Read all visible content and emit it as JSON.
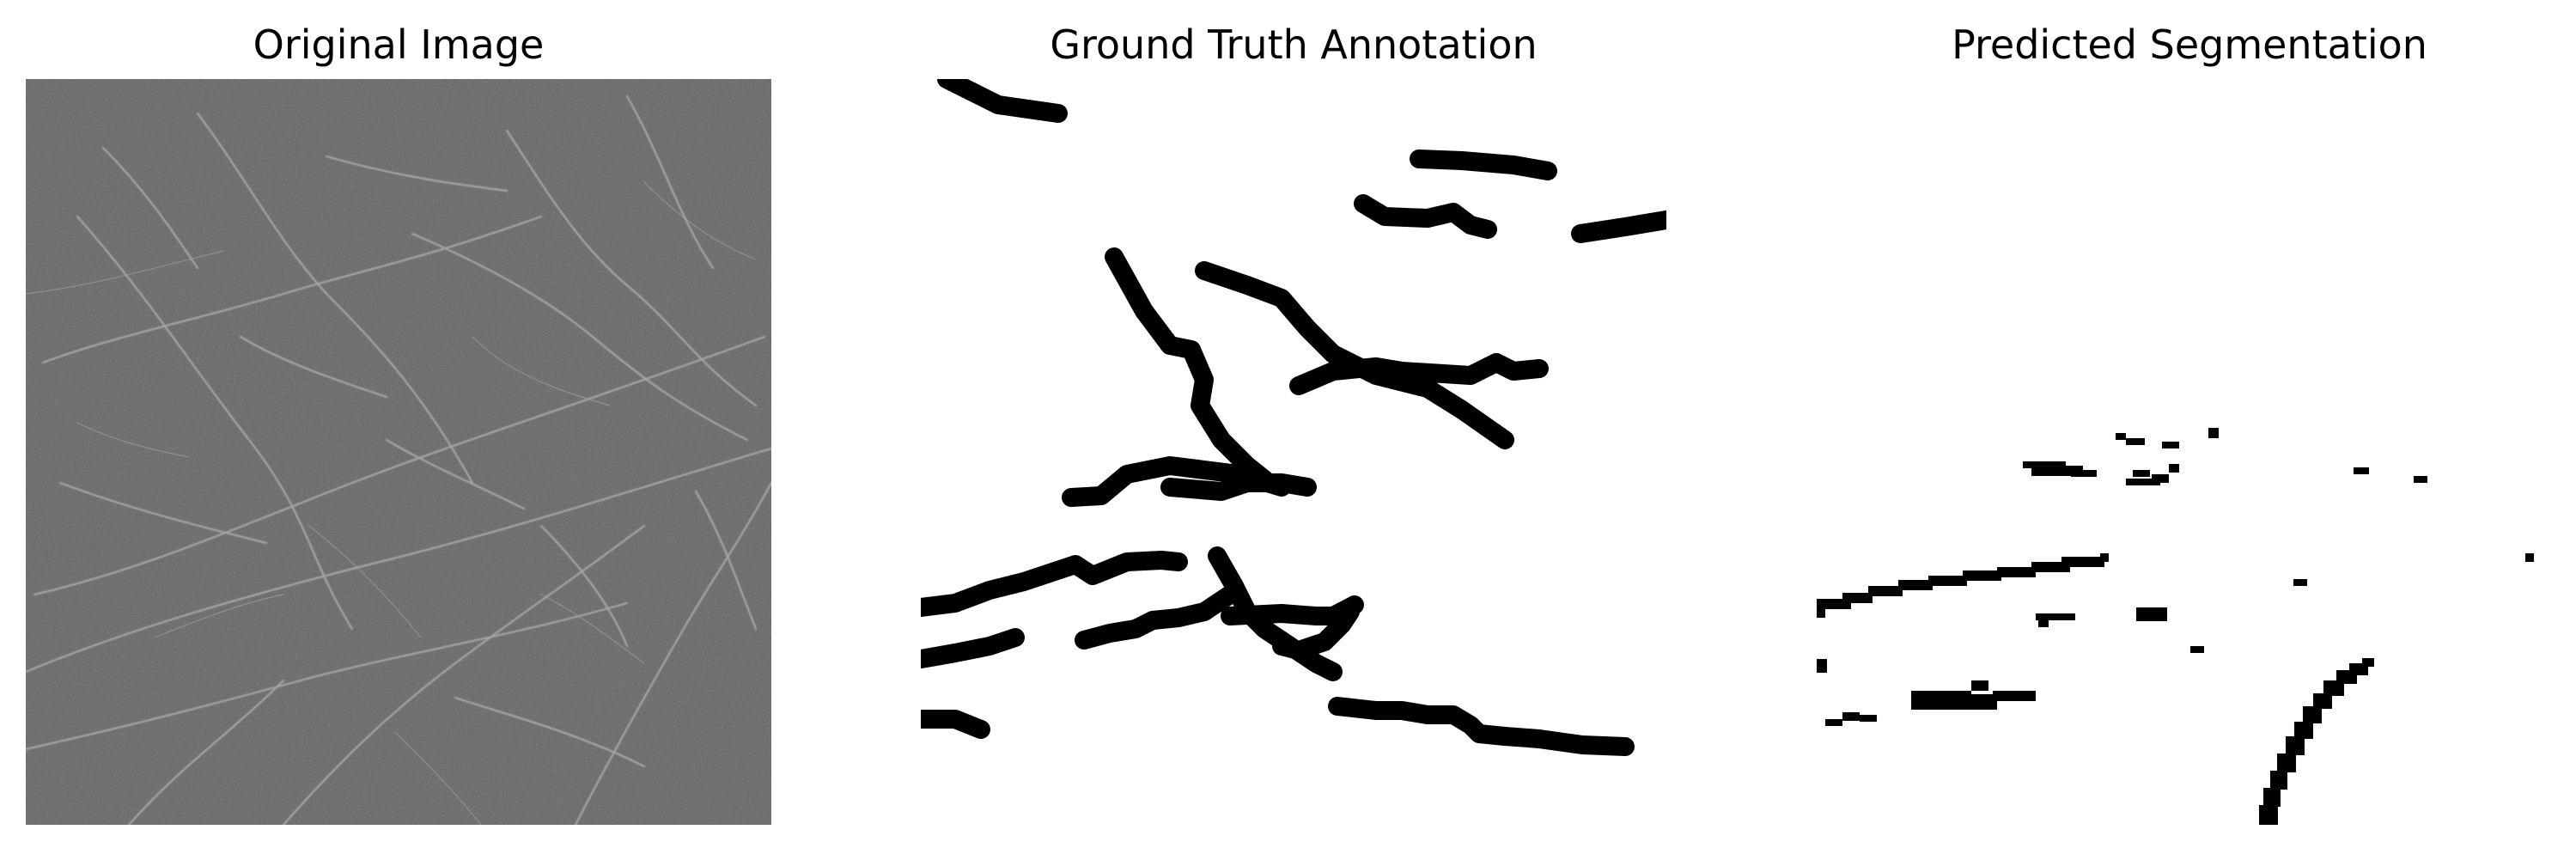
{
  "figure": {
    "panels": [
      {
        "title": "Original Image"
      },
      {
        "title": "Ground Truth Annotation"
      },
      {
        "title": "Predicted Segmentation"
      }
    ],
    "colors": {
      "background": "#ffffff",
      "image_gray": "#6e6e6e",
      "crack_highlight": "#b8b8b8",
      "mask_foreground": "#000000",
      "mask_background": "#ffffff"
    },
    "image_content": "grayscale-crack-texture"
  }
}
